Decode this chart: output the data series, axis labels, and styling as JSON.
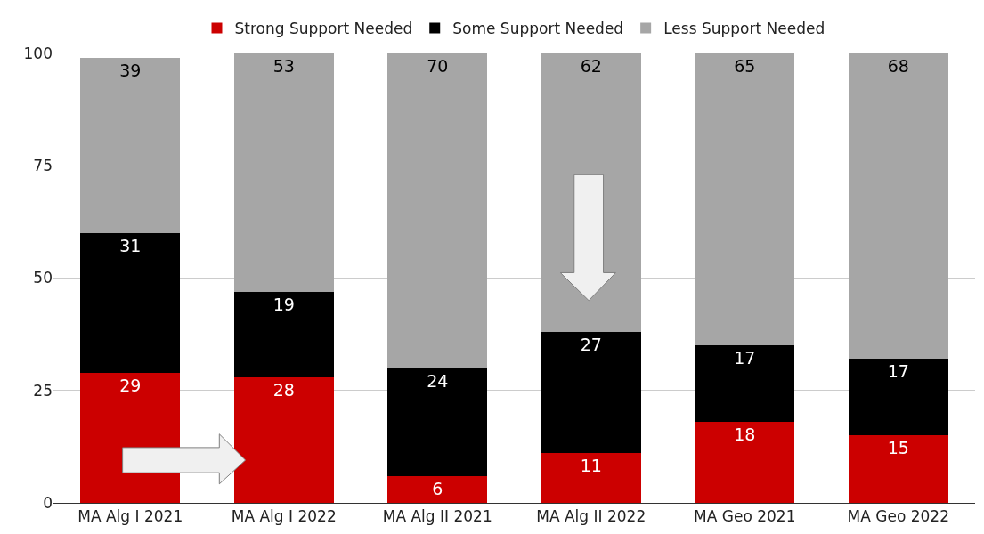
{
  "chart_data": {
    "type": "bar",
    "stacked": true,
    "categories": [
      "MA Alg I 2021",
      "MA Alg I 2022",
      "MA Alg II 2021",
      "MA Alg II 2022",
      "MA Geo 2021",
      "MA Geo 2022"
    ],
    "series": [
      {
        "name": "Strong Support Needed",
        "color": "#cc0000",
        "values": [
          29,
          28,
          6,
          11,
          18,
          15
        ]
      },
      {
        "name": "Some Support Needed",
        "color": "#000000",
        "values": [
          31,
          19,
          24,
          27,
          17,
          17
        ]
      },
      {
        "name": "Less Support Needed",
        "color": "#a6a6a6",
        "values": [
          39,
          53,
          70,
          62,
          65,
          68
        ]
      }
    ],
    "ylim": [
      0,
      100
    ],
    "yticks": [
      0,
      25,
      50,
      75,
      100
    ],
    "grid": "y",
    "legend": "top",
    "data_labels": true
  }
}
